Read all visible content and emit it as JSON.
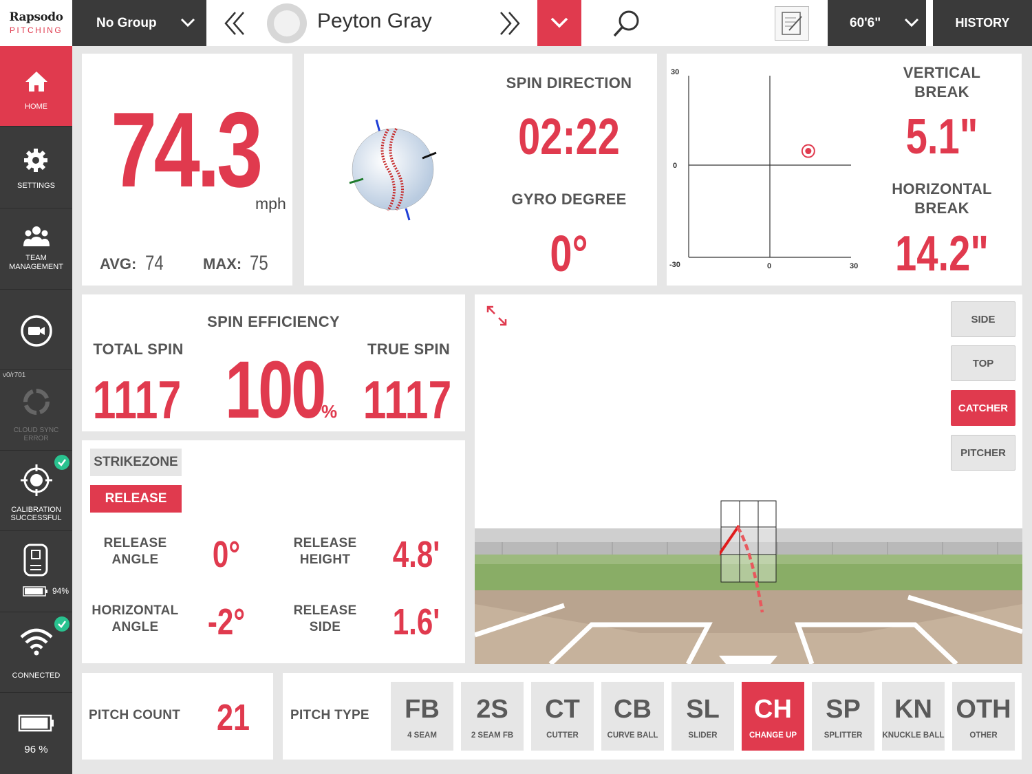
{
  "colors": {
    "accent": "#e03a4e",
    "dark": "#3a3a3a",
    "ok": "#29c28f"
  },
  "header": {
    "logo_main": "Rapsodo",
    "logo_sub": "PITCHING",
    "group": "No Group",
    "player_name": "Peyton Gray",
    "distance": "60'6\"",
    "history": "HISTORY",
    "icons": [
      "chevron-down-icon",
      "double-chevron-left-icon",
      "avatar-icon",
      "double-chevron-right-icon",
      "search-icon",
      "notes-icon"
    ]
  },
  "sidebar": {
    "home": "HOME",
    "settings": "SETTINGS",
    "team_line1": "TEAM",
    "team_line2": "MANAGEMENT",
    "version": "v0/r701",
    "cloud_line1": "CLOUD SYNC",
    "cloud_line2": "ERROR",
    "calib_line1": "CALIBRATION",
    "calib_line2": "SUCCESSFUL",
    "device_battery": "94%",
    "connected": "CONNECTED",
    "battery": "96 %",
    "device_battery_level": 0.94,
    "battery_level": 0.96
  },
  "speed": {
    "value": "74.3",
    "unit": "mph",
    "avg_label": "AVG:",
    "avg": "74",
    "max_label": "MAX:",
    "max": "75"
  },
  "spin": {
    "direction_label": "SPIN DIRECTION",
    "direction": "02:22",
    "gyro_label": "GYRO DEGREE",
    "gyro": "0°"
  },
  "break": {
    "vertical_line1": "VERTICAL",
    "vertical_line2": "BREAK",
    "vertical": "5.1\"",
    "horizontal_line1": "HORIZONTAL",
    "horizontal_line2": "BREAK",
    "horizontal": "14.2\"",
    "chart": {
      "y_top": "30",
      "y_mid": "0",
      "y_bottom": "-30",
      "x_mid": "0",
      "x_right": "30"
    }
  },
  "chart_data": {
    "type": "scatter",
    "x": [
      14.2
    ],
    "y": [
      5.1
    ],
    "xlim": [
      -30,
      30
    ],
    "ylim": [
      -30,
      30
    ],
    "tick_labels": [
      "30",
      "0",
      "-30",
      "0",
      "30"
    ]
  },
  "efficiency": {
    "title": "SPIN EFFICIENCY",
    "value": "100",
    "pct": "%",
    "total_label": "TOTAL SPIN",
    "total": "1117",
    "true_label": "TRUE SPIN",
    "true": "1117"
  },
  "release": {
    "tab_strikezone": "STRIKEZONE",
    "tab_release": "RELEASE",
    "angle_l1": "RELEASE",
    "angle_l2": "ANGLE",
    "angle": "0°",
    "height_l1": "RELEASE",
    "height_l2": "HEIGHT",
    "height": "4.8'",
    "hangle_l1": "HORIZONTAL",
    "hangle_l2": "ANGLE",
    "hangle": "-2°",
    "side_l1": "RELEASE",
    "side_l2": "SIDE",
    "side": "1.6'"
  },
  "view": {
    "side": "SIDE",
    "top": "TOP",
    "catcher": "CATCHER",
    "pitcher": "PITCHER"
  },
  "pitch_count": {
    "label": "PITCH COUNT",
    "value": "21"
  },
  "pitch_type": {
    "label": "PITCH TYPE",
    "items": [
      {
        "code": "FB",
        "name": "4 SEAM"
      },
      {
        "code": "2S",
        "name": "2 SEAM FB"
      },
      {
        "code": "CT",
        "name": "CUTTER"
      },
      {
        "code": "CB",
        "name": "CURVE BALL"
      },
      {
        "code": "SL",
        "name": "SLIDER"
      },
      {
        "code": "CH",
        "name": "CHANGE UP"
      },
      {
        "code": "SP",
        "name": "SPLITTER"
      },
      {
        "code": "KN",
        "name": "KNUCKLE BALL"
      },
      {
        "code": "OTH",
        "name": "OTHER"
      }
    ]
  }
}
